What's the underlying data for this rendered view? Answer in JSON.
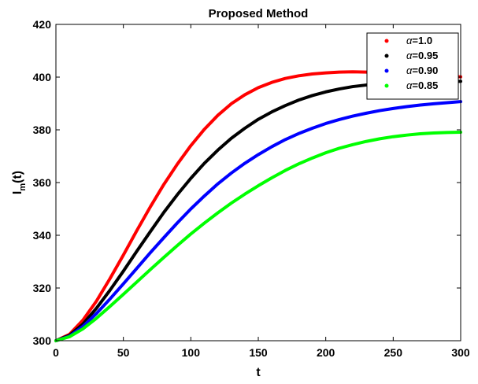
{
  "chart_data": {
    "type": "line",
    "title": "Proposed Method",
    "xlabel": "t",
    "ylabel": {
      "base": "I",
      "sub": "m",
      "suffix": "(t)"
    },
    "xlim": [
      0,
      300
    ],
    "ylim": [
      300,
      420
    ],
    "xticks": [
      0,
      50,
      100,
      150,
      200,
      250,
      300
    ],
    "yticks": [
      300,
      320,
      340,
      360,
      380,
      400,
      420
    ],
    "grid": false,
    "legend_position": "top-right",
    "x": [
      0,
      10,
      20,
      30,
      40,
      50,
      60,
      70,
      80,
      90,
      100,
      110,
      120,
      130,
      140,
      150,
      160,
      170,
      180,
      190,
      200,
      210,
      220,
      230,
      240,
      250,
      260,
      270,
      280,
      290,
      300
    ],
    "series": [
      {
        "name": "α=1.0",
        "greek": "α",
        "value_text": "=1.0",
        "color": "#ff0000",
        "values": [
          300,
          302.4,
          307.8,
          315,
          323.5,
          332.5,
          341.8,
          350.8,
          359.3,
          367,
          374,
          380.2,
          385.5,
          389.9,
          393.3,
          396,
          398,
          399.5,
          400.5,
          401.2,
          401.6,
          401.9,
          402,
          401.9,
          401.7,
          401.4,
          401.1,
          400.8,
          400.5,
          400.3,
          400.1
        ]
      },
      {
        "name": "α=0.95",
        "greek": "α",
        "value_text": "=0.95",
        "color": "#000000",
        "values": [
          300,
          302,
          306.3,
          312.3,
          319.1,
          326.4,
          334,
          341.4,
          348.7,
          355.4,
          361.6,
          367.3,
          372.3,
          376.8,
          380.6,
          384,
          386.8,
          389.2,
          391.3,
          393,
          394.4,
          395.5,
          396.4,
          397,
          397.5,
          397.9,
          398.1,
          398.3,
          398.4,
          398.4,
          398.4
        ]
      },
      {
        "name": "α=0.90",
        "greek": "α",
        "value_text": "=0.90",
        "color": "#0000ff",
        "values": [
          300,
          301.7,
          305.4,
          310.3,
          315.8,
          321.6,
          327.5,
          333.4,
          339.1,
          344.7,
          350,
          354.9,
          359.5,
          363.6,
          367.3,
          370.6,
          373.6,
          376.3,
          378.6,
          380.6,
          382.4,
          383.9,
          385.2,
          386.3,
          387.3,
          388.1,
          388.8,
          389.4,
          389.9,
          390.3,
          390.7
        ]
      },
      {
        "name": "α=0.85",
        "greek": "α",
        "value_text": "=0.85",
        "color": "#00ff00",
        "values": [
          300,
          301.5,
          304.5,
          308.5,
          313,
          317.6,
          322.3,
          327,
          331.6,
          336.1,
          340.5,
          344.6,
          348.5,
          352.2,
          355.6,
          358.8,
          361.8,
          364.6,
          367.1,
          369.3,
          371.3,
          373,
          374.4,
          375.6,
          376.6,
          377.4,
          378,
          378.5,
          378.8,
          379,
          379.1
        ]
      }
    ]
  }
}
